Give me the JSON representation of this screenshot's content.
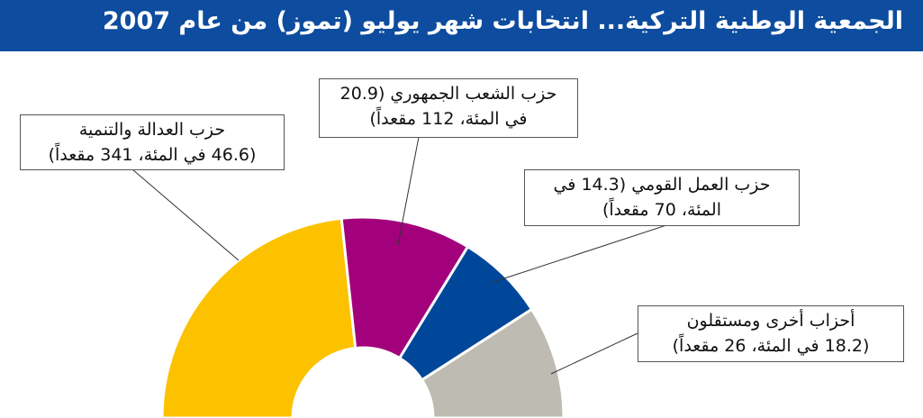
{
  "header": {
    "title": "الجمعية الوطنية التركية... انتخابات شهر يوليو (تموز) من عام 2007"
  },
  "colors": {
    "header": "#0d4c9e"
  },
  "chart_data": {
    "type": "pie",
    "variant": "half-donut",
    "title": "الجمعية الوطنية التركية... انتخابات شهر يوليو (تموز) من عام 2007",
    "series": [
      {
        "name": "حزب العدالة والتنمية",
        "percent": 46.6,
        "seats": 341,
        "color": "#fcc200",
        "label_lines": [
          "حزب العدالة والتنمية",
          "(46.6 في المئة، 341 مقعداً)"
        ]
      },
      {
        "name": "حزب الشعب الجمهوري",
        "percent": 20.9,
        "seats": 112,
        "color": "#a3007c",
        "label_lines": [
          "حزب الشعب الجمهوري (20.9",
          "في المئة، 112 مقعداً)"
        ]
      },
      {
        "name": "حزب العمل القومي",
        "percent": 14.3,
        "seats": 70,
        "color": "#00479a",
        "label_lines": [
          "حزب العمل القومي (14.3 في",
          "المئة، 70 مقعداً)"
        ]
      },
      {
        "name": "أحزاب أخرى ومستقلون",
        "percent": 18.2,
        "seats": 26,
        "color": "#bdbbb2",
        "label_lines": [
          "أحزاب أخرى ومستقلون",
          "(18.2 في المئة، 26 مقعداً)"
        ]
      }
    ]
  }
}
